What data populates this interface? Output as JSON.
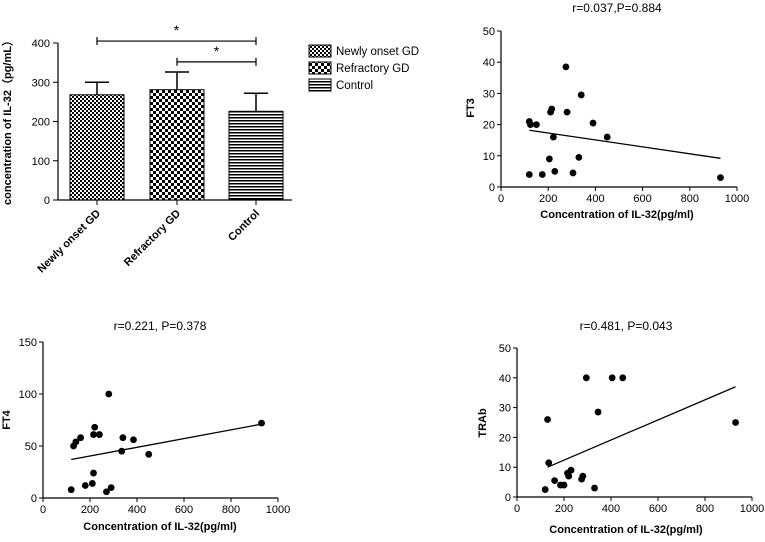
{
  "chart_data": [
    {
      "type": "bar",
      "title": "",
      "xlabel": "",
      "ylabel": "concentration of IL-32（pg/mL）",
      "ylim": [
        0,
        400
      ],
      "yticks": [
        0,
        100,
        200,
        300,
        400
      ],
      "categories": [
        "Newly onset GD",
        "Refractory GD",
        "Control"
      ],
      "values": [
        268,
        281,
        226
      ],
      "errors": [
        32,
        45,
        46
      ],
      "patterns": [
        "checker-fine",
        "checker-coarse",
        "horizontal-lines"
      ],
      "legend": [
        "Newly onset GD",
        "Refractory GD",
        "Control"
      ],
      "legend_position": "right",
      "significance": [
        {
          "from": 0,
          "to": 2,
          "label": "*",
          "y": 405
        },
        {
          "from": 1,
          "to": 2,
          "label": "*",
          "y": 352
        }
      ]
    },
    {
      "type": "scatter",
      "title": "r=0.037,P=0.884",
      "xlabel": "Concentration of IL-32(pg/ml)",
      "ylabel": "FT3",
      "xlim": [
        0,
        1000
      ],
      "ylim": [
        0,
        50
      ],
      "xticks": [
        0,
        200,
        400,
        600,
        800,
        1000
      ],
      "yticks": [
        0,
        10,
        20,
        30,
        40,
        50
      ],
      "x": [
        120,
        125,
        150,
        210,
        215,
        222,
        228,
        205,
        175,
        120,
        275,
        280,
        305,
        330,
        340,
        390,
        450,
        930
      ],
      "y": [
        21,
        20,
        20,
        24,
        25,
        16,
        5,
        9,
        4,
        4,
        38.5,
        24,
        4.5,
        9.5,
        29.5,
        20.5,
        16,
        3
      ],
      "trendline": {
        "x": [
          120,
          930
        ],
        "y": [
          18.2,
          9.2
        ]
      }
    },
    {
      "type": "scatter",
      "title": "r=0.221, P=0.378",
      "xlabel": "Concentration of IL-32(pg/ml)",
      "ylabel": "FT4",
      "xlim": [
        0,
        1000
      ],
      "ylim": [
        0,
        150
      ],
      "xticks": [
        0,
        200,
        400,
        600,
        800,
        1000
      ],
      "yticks": [
        0,
        50,
        100,
        150
      ],
      "x": [
        120,
        130,
        140,
        160,
        180,
        210,
        215,
        220,
        215,
        240,
        270,
        280,
        290,
        335,
        340,
        385,
        450,
        930
      ],
      "y": [
        8,
        50,
        54,
        58,
        12,
        14,
        24,
        68,
        61,
        61,
        6,
        100,
        10,
        45,
        58,
        56,
        42,
        72
      ],
      "trendline": {
        "x": [
          120,
          930
        ],
        "y": [
          37,
          71
        ]
      }
    },
    {
      "type": "scatter",
      "title": "r=0.481, P=0.043",
      "xlabel": "Concentration of IL-32(pg/ml)",
      "ylabel": "TRAb",
      "xlim": [
        0,
        1000
      ],
      "ylim": [
        0,
        50
      ],
      "xticks": [
        0,
        200,
        400,
        600,
        800,
        1000
      ],
      "yticks": [
        0,
        10,
        20,
        30,
        40,
        50
      ],
      "x": [
        120,
        130,
        135,
        160,
        185,
        200,
        215,
        220,
        230,
        275,
        280,
        295,
        330,
        345,
        405,
        450,
        930
      ],
      "y": [
        2.5,
        26,
        11.5,
        5.5,
        4,
        4,
        8,
        7,
        9,
        6,
        7,
        40,
        3,
        28.5,
        40,
        40,
        25
      ],
      "trendline": {
        "x": [
          130,
          930
        ],
        "y": [
          10,
          37
        ]
      }
    }
  ]
}
